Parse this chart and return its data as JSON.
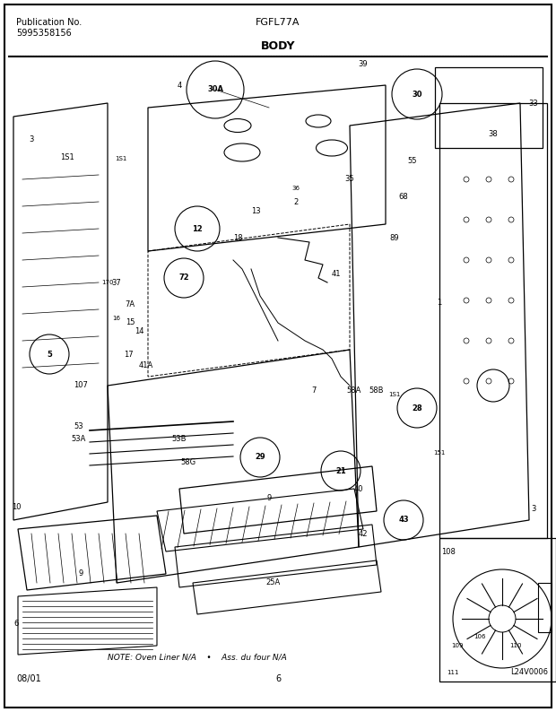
{
  "title_center": "FGFL77A",
  "title_section": "BODY",
  "pub_no_label": "Publication No.",
  "pub_no": "5995358156",
  "date_label": "08/01",
  "page_number": "6",
  "diagram_id": "L24V0006",
  "note_text": "NOTE: Oven Liner N/A    •    Ass. du four N/A",
  "bg_color": "#ffffff",
  "border_color": "#000000",
  "text_color": "#000000",
  "fig_width": 6.2,
  "fig_height": 7.94,
  "dpi": 100
}
